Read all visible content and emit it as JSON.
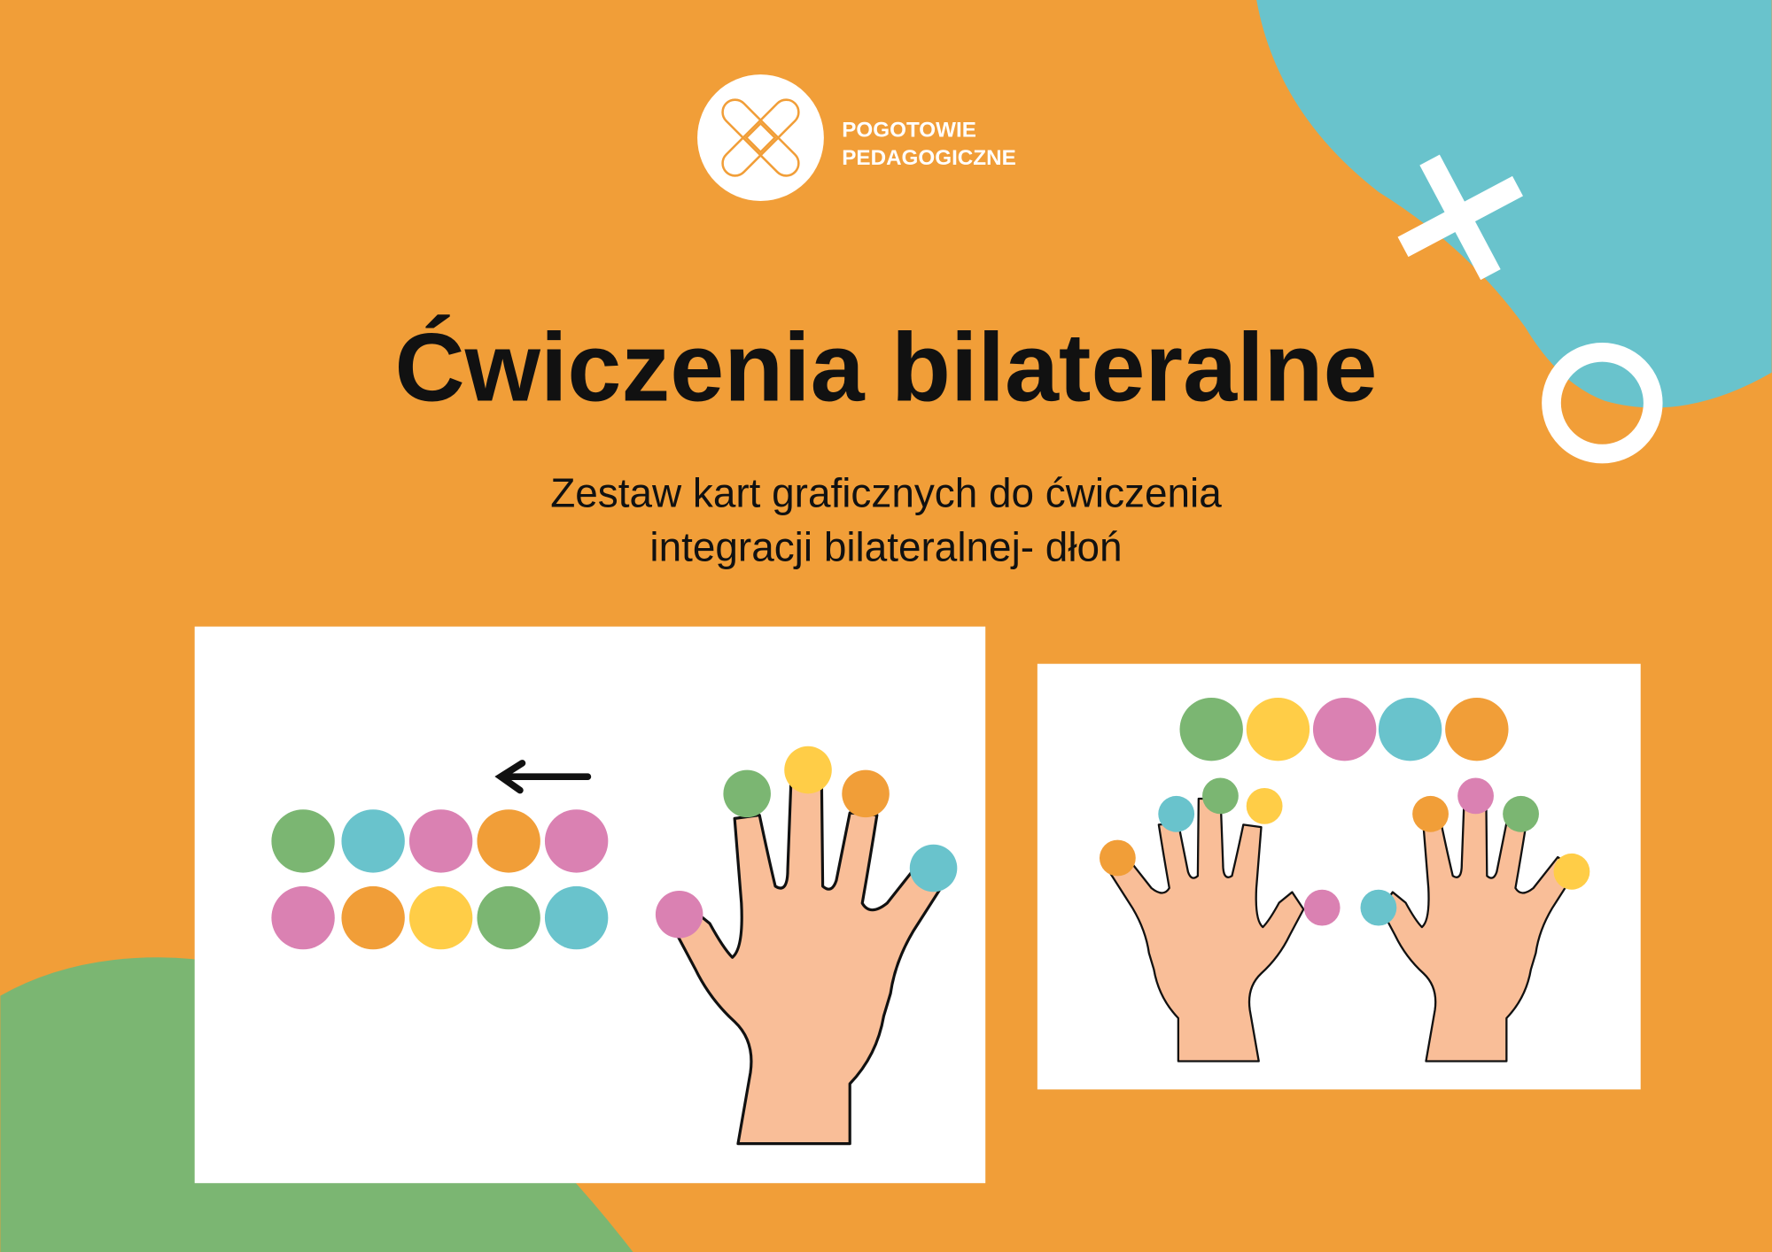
{
  "brand": {
    "line1": "POGOTOWIE",
    "line2": "PEDAGOGICZNE"
  },
  "title": "Ćwiczenia bilateralne",
  "subtitle": {
    "line1": "Zestaw kart graficznych do ćwiczenia",
    "line2": "integracji bilateralnej- dłoń"
  },
  "colors": {
    "background": "#f19e38",
    "teal": "#69c3cc",
    "green": "#7bb672",
    "pink": "#da81b2",
    "orange": "#f19e38",
    "yellow": "#ffcd47",
    "skin": "#f9be98",
    "white": "#ffffff"
  },
  "card1": {
    "arrow": "left-arrow",
    "row1": [
      "green",
      "teal",
      "pink",
      "orange",
      "pink"
    ],
    "row2": [
      "pink",
      "orange",
      "yellow",
      "green",
      "teal"
    ],
    "fingertips": [
      "pink",
      "green",
      "yellow",
      "orange",
      "teal"
    ]
  },
  "card2": {
    "row": [
      "green",
      "yellow",
      "pink",
      "teal",
      "orange"
    ],
    "left_hand_fingertips": [
      "orange",
      "teal",
      "green",
      "yellow",
      "pink"
    ],
    "right_hand_fingertips": [
      "teal",
      "orange",
      "pink",
      "green",
      "yellow"
    ]
  }
}
